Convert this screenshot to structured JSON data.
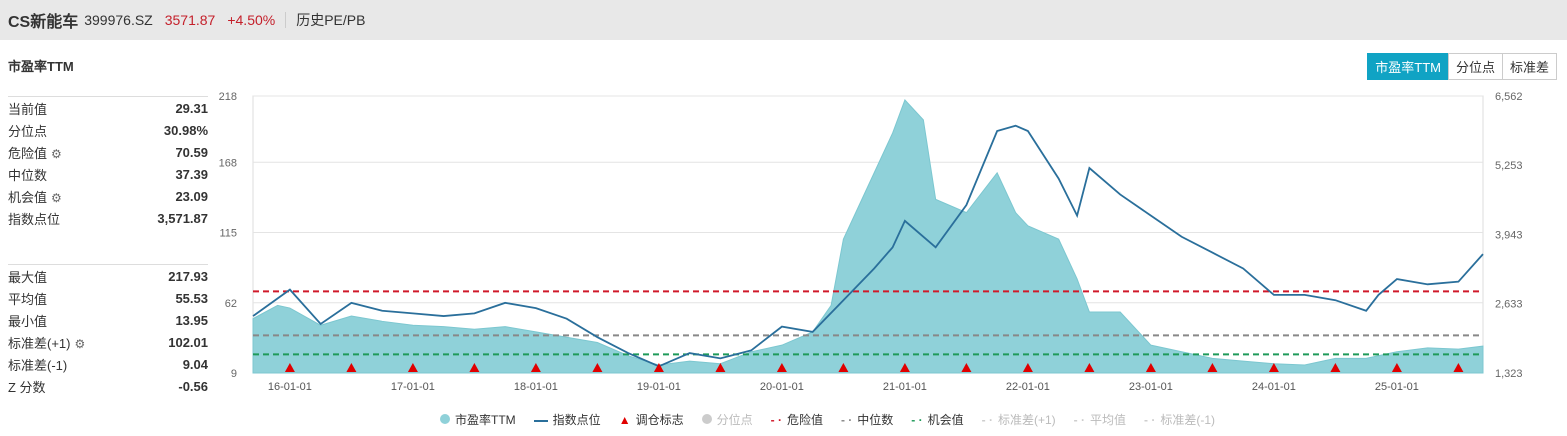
{
  "header": {
    "name": "CS新能车",
    "code": "399976.SZ",
    "price": "3571.87",
    "change": "+4.50%",
    "link": "历史PE/PB"
  },
  "title": "市盈率TTM",
  "tabs": [
    "市盈率TTM",
    "分位点",
    "标准差"
  ],
  "stats1": [
    {
      "label": "当前值",
      "value": "29.31"
    },
    {
      "label": "分位点",
      "value": "30.98%"
    },
    {
      "label": "危险值",
      "value": "70.59",
      "gear": true
    },
    {
      "label": "中位数",
      "value": "37.39"
    },
    {
      "label": "机会值",
      "value": "23.09",
      "gear": true
    },
    {
      "label": "指数点位",
      "value": "3,571.87"
    }
  ],
  "stats2": [
    {
      "label": "最大值",
      "value": "217.93"
    },
    {
      "label": "平均值",
      "value": "55.53"
    },
    {
      "label": "最小值",
      "value": "13.95"
    },
    {
      "label": "标准差(+1)",
      "value": "102.01",
      "gear": true
    },
    {
      "label": "标准差(-1)",
      "value": "9.04"
    },
    {
      "label": "Z 分数",
      "value": "-0.56"
    }
  ],
  "colors": {
    "pe": "#8fd1d9",
    "index": "#2a6f9b",
    "danger": "#d0192a",
    "median": "#888888",
    "chance": "#1f9a5a",
    "marker": "#e00000"
  },
  "legend": [
    {
      "label": "市盈率TTM",
      "icon": "circle",
      "color": "#8fd1d9"
    },
    {
      "label": "指数点位",
      "icon": "line",
      "color": "#2a6f9b"
    },
    {
      "label": "调仓标志",
      "icon": "triangle",
      "color": "#e00000"
    },
    {
      "label": "分位点",
      "icon": "circle",
      "color": "#ccc",
      "dim": true
    },
    {
      "label": "危险值",
      "icon": "dash",
      "color": "#d0192a"
    },
    {
      "label": "中位数",
      "icon": "dash",
      "color": "#888"
    },
    {
      "label": "机会值",
      "icon": "dash",
      "color": "#1f9a5a"
    },
    {
      "label": "标准差(+1)",
      "icon": "dash",
      "color": "#ccc",
      "dim": true
    },
    {
      "label": "平均值",
      "icon": "dash",
      "color": "#ccc",
      "dim": true
    },
    {
      "label": "标准差(-1)",
      "icon": "dash",
      "color": "#ccc",
      "dim": true
    }
  ],
  "chart_data": {
    "type": "area+line",
    "x_range": [
      2015.7,
      2025.7
    ],
    "x_ticks": [
      {
        "t": 2016,
        "label": "16-01-01"
      },
      {
        "t": 2017,
        "label": "17-01-01"
      },
      {
        "t": 2018,
        "label": "18-01-01"
      },
      {
        "t": 2019,
        "label": "19-01-01"
      },
      {
        "t": 2020,
        "label": "20-01-01"
      },
      {
        "t": 2021,
        "label": "21-01-01"
      },
      {
        "t": 2022,
        "label": "22-01-01"
      },
      {
        "t": 2023,
        "label": "23-01-01"
      },
      {
        "t": 2024,
        "label": "24-01-01"
      },
      {
        "t": 2025,
        "label": "25-01-01"
      }
    ],
    "y_left": {
      "range": [
        9,
        218
      ],
      "ticks": [
        "9",
        "62",
        "115",
        "168",
        "218"
      ],
      "values": [
        9,
        62,
        115,
        168,
        218
      ]
    },
    "y_right": {
      "range": [
        1323,
        6562
      ],
      "ticks": [
        "1,323",
        "2,633",
        "3,943",
        "5,253",
        "6,562"
      ],
      "values": [
        1323,
        2633,
        3943,
        5253,
        6562
      ]
    },
    "pe": [
      [
        2015.7,
        50
      ],
      [
        2015.9,
        60
      ],
      [
        2016.0,
        58
      ],
      [
        2016.25,
        45
      ],
      [
        2016.5,
        52
      ],
      [
        2016.75,
        48
      ],
      [
        2017.0,
        45
      ],
      [
        2017.25,
        44
      ],
      [
        2017.5,
        42
      ],
      [
        2017.75,
        44
      ],
      [
        2018.0,
        40
      ],
      [
        2018.25,
        36
      ],
      [
        2018.5,
        32
      ],
      [
        2018.75,
        22
      ],
      [
        2019.0,
        15
      ],
      [
        2019.25,
        18
      ],
      [
        2019.5,
        16
      ],
      [
        2019.75,
        25
      ],
      [
        2020.0,
        30
      ],
      [
        2020.25,
        40
      ],
      [
        2020.4,
        60
      ],
      [
        2020.5,
        110
      ],
      [
        2020.75,
        160
      ],
      [
        2020.9,
        190
      ],
      [
        2021.0,
        215
      ],
      [
        2021.15,
        200
      ],
      [
        2021.25,
        140
      ],
      [
        2021.5,
        130
      ],
      [
        2021.75,
        160
      ],
      [
        2021.9,
        130
      ],
      [
        2022.0,
        120
      ],
      [
        2022.25,
        110
      ],
      [
        2022.4,
        80
      ],
      [
        2022.5,
        55
      ],
      [
        2022.75,
        55
      ],
      [
        2023.0,
        30
      ],
      [
        2023.25,
        25
      ],
      [
        2023.5,
        20
      ],
      [
        2023.75,
        18
      ],
      [
        2024.0,
        16
      ],
      [
        2024.25,
        15
      ],
      [
        2024.5,
        20
      ],
      [
        2024.75,
        20
      ],
      [
        2025.0,
        25
      ],
      [
        2025.25,
        28
      ],
      [
        2025.5,
        27
      ],
      [
        2025.7,
        29.31
      ]
    ],
    "index": [
      [
        2015.7,
        2400
      ],
      [
        2016.0,
        2900
      ],
      [
        2016.25,
        2250
      ],
      [
        2016.5,
        2650
      ],
      [
        2016.75,
        2500
      ],
      [
        2017.0,
        2450
      ],
      [
        2017.25,
        2400
      ],
      [
        2017.5,
        2450
      ],
      [
        2017.75,
        2650
      ],
      [
        2018.0,
        2550
      ],
      [
        2018.25,
        2350
      ],
      [
        2018.5,
        2000
      ],
      [
        2018.75,
        1700
      ],
      [
        2019.0,
        1450
      ],
      [
        2019.25,
        1700
      ],
      [
        2019.5,
        1600
      ],
      [
        2019.75,
        1750
      ],
      [
        2020.0,
        2200
      ],
      [
        2020.25,
        2100
      ],
      [
        2020.5,
        2700
      ],
      [
        2020.75,
        3300
      ],
      [
        2020.9,
        3700
      ],
      [
        2021.0,
        4200
      ],
      [
        2021.25,
        3700
      ],
      [
        2021.5,
        4500
      ],
      [
        2021.75,
        5900
      ],
      [
        2021.9,
        6000
      ],
      [
        2022.0,
        5900
      ],
      [
        2022.25,
        5000
      ],
      [
        2022.4,
        4300
      ],
      [
        2022.5,
        5200
      ],
      [
        2022.75,
        4700
      ],
      [
        2023.0,
        4300
      ],
      [
        2023.25,
        3900
      ],
      [
        2023.5,
        3600
      ],
      [
        2023.75,
        3300
      ],
      [
        2024.0,
        2800
      ],
      [
        2024.25,
        2800
      ],
      [
        2024.5,
        2700
      ],
      [
        2024.75,
        2500
      ],
      [
        2024.85,
        2800
      ],
      [
        2025.0,
        3100
      ],
      [
        2025.25,
        3000
      ],
      [
        2025.5,
        3050
      ],
      [
        2025.7,
        3571.87
      ]
    ],
    "rebalance": [
      2016.0,
      2016.5,
      2017.0,
      2017.5,
      2018.0,
      2018.5,
      2019.0,
      2019.5,
      2020.0,
      2020.5,
      2021.0,
      2021.5,
      2022.0,
      2022.5,
      2023.0,
      2023.5,
      2024.0,
      2024.5,
      2025.0,
      2025.5
    ],
    "danger": 70.59,
    "median": 37.39,
    "chance": 23.09
  }
}
